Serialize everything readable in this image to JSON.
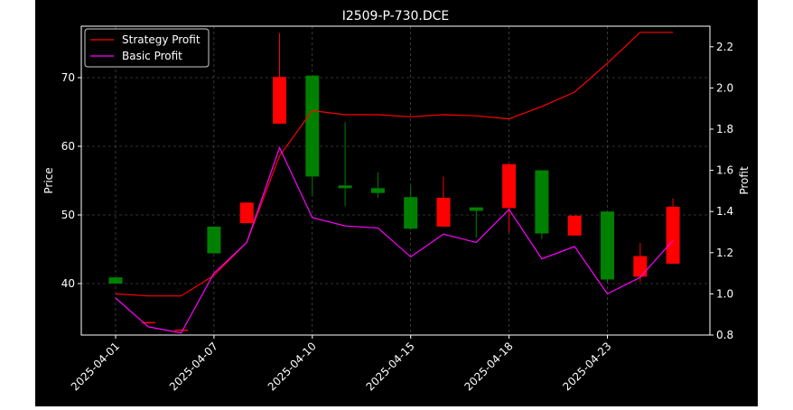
{
  "chart_data": {
    "type": "candlestick",
    "title": "I2509-P-730.DCE",
    "xlabel": "",
    "ylabel_left": "Price",
    "ylabel_right": "Profit",
    "ylim_left": [
      32.5,
      77.5
    ],
    "ylim_right": [
      0.8,
      2.3
    ],
    "yticks_left": [
      40,
      50,
      60,
      70
    ],
    "yticks_right": [
      0.8,
      1.0,
      1.2,
      1.4,
      1.6,
      1.8,
      2.0,
      2.2
    ],
    "x_tick_labels": [
      "2025-04-01",
      "2025-04-07",
      "2025-04-10",
      "2025-04-15",
      "2025-04-18",
      "2025-04-23"
    ],
    "x_tick_index": [
      0,
      3,
      6,
      9,
      12,
      15
    ],
    "grid": true,
    "legend_position": "upper-left",
    "colors": {
      "up": "#ff0000",
      "down": "#008000",
      "strategy": "#ff0000",
      "basic": "#ff00ff",
      "grid": "#888888"
    },
    "candles": [
      {
        "open": 40.9,
        "close": 40.0,
        "high": 40.9,
        "low": 40.0
      },
      {
        "open": 34.2,
        "close": 34.4,
        "high": 34.4,
        "low": 34.2
      },
      {
        "open": 33.1,
        "close": 33.3,
        "high": 33.3,
        "low": 33.1
      },
      {
        "open": 48.3,
        "close": 44.4,
        "high": 48.3,
        "low": 44.4
      },
      {
        "open": 48.8,
        "close": 51.8,
        "high": 51.8,
        "low": 48.8
      },
      {
        "open": 63.3,
        "close": 70.1,
        "high": 76.5,
        "low": 63.3
      },
      {
        "open": 70.3,
        "close": 55.6,
        "high": 70.3,
        "low": 52.8
      },
      {
        "open": 54.3,
        "close": 53.9,
        "high": 63.5,
        "low": 51.3
      },
      {
        "open": 53.9,
        "close": 53.2,
        "high": 56.2,
        "low": 52.5
      },
      {
        "open": 52.6,
        "close": 48.0,
        "high": 54.3,
        "low": 47.8
      },
      {
        "open": 48.3,
        "close": 52.5,
        "high": 55.6,
        "low": 48.3
      },
      {
        "open": 51.1,
        "close": 50.6,
        "high": 51.1,
        "low": 46.7
      },
      {
        "open": 51.0,
        "close": 57.4,
        "high": 57.4,
        "low": 47.5
      },
      {
        "open": 56.5,
        "close": 47.3,
        "high": 56.5,
        "low": 46.5
      },
      {
        "open": 47.0,
        "close": 49.9,
        "high": 49.9,
        "low": 47.0
      },
      {
        "open": 50.5,
        "close": 40.6,
        "high": 50.5,
        "low": 40.2
      },
      {
        "open": 41.0,
        "close": 44.0,
        "high": 45.9,
        "low": 40.2
      },
      {
        "open": 42.9,
        "close": 51.2,
        "high": 52.4,
        "low": 42.9
      }
    ],
    "series": [
      {
        "name": "Strategy Profit",
        "axis": "right",
        "values": [
          1.0,
          0.99,
          0.99,
          1.09,
          1.25,
          1.67,
          1.89,
          1.87,
          1.87,
          1.86,
          1.87,
          1.865,
          1.85,
          1.91,
          1.98,
          2.12,
          2.27,
          2.27
        ]
      },
      {
        "name": "Basic Profit",
        "axis": "right",
        "values": [
          0.98,
          0.84,
          0.81,
          1.1,
          1.25,
          1.71,
          1.37,
          1.33,
          1.32,
          1.18,
          1.29,
          1.25,
          1.41,
          1.17,
          1.23,
          1.0,
          1.08,
          1.26
        ]
      }
    ]
  }
}
